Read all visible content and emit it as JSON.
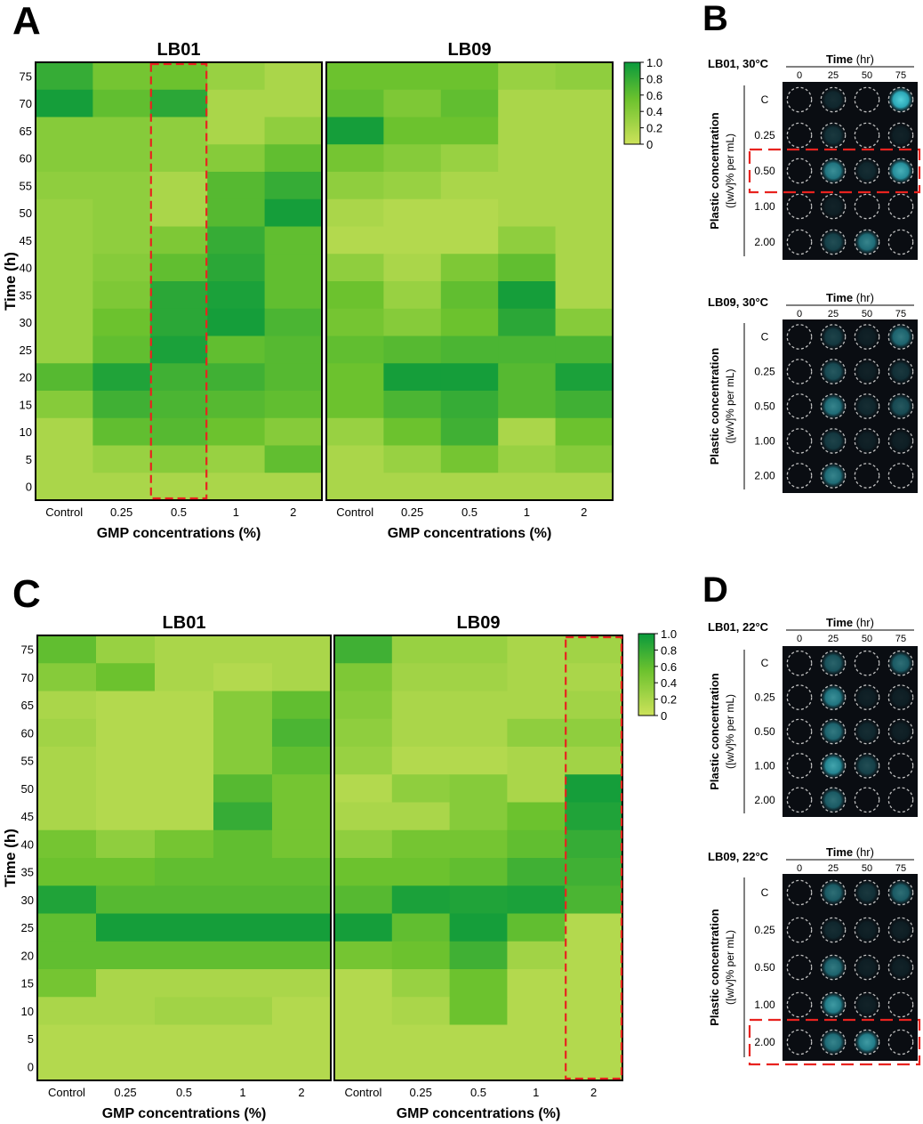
{
  "chart_data": [
    {
      "type": "heatmap",
      "panel": "A",
      "title": "LB01",
      "xlabel": "GMP concentrations (%)",
      "ylabel": "Time (h)",
      "x_categories": [
        "Control",
        "0.25",
        "0.5",
        "1",
        "2"
      ],
      "y_categories": [
        "75",
        "70",
        "65",
        "60",
        "55",
        "50",
        "45",
        "40",
        "35",
        "30",
        "25",
        "20",
        "15",
        "10",
        "5",
        "0"
      ],
      "values": [
        [
          0.8,
          0.5,
          0.55,
          0.3,
          0.2
        ],
        [
          0.95,
          0.6,
          0.85,
          0.2,
          0.2
        ],
        [
          0.4,
          0.4,
          0.35,
          0.2,
          0.35
        ],
        [
          0.4,
          0.4,
          0.35,
          0.4,
          0.6
        ],
        [
          0.35,
          0.35,
          0.2,
          0.65,
          0.8
        ],
        [
          0.3,
          0.35,
          0.2,
          0.65,
          0.95
        ],
        [
          0.3,
          0.35,
          0.45,
          0.8,
          0.6
        ],
        [
          0.3,
          0.4,
          0.6,
          0.85,
          0.6
        ],
        [
          0.3,
          0.45,
          0.85,
          0.92,
          0.6
        ],
        [
          0.3,
          0.55,
          0.85,
          0.95,
          0.7
        ],
        [
          0.3,
          0.6,
          0.92,
          0.6,
          0.65
        ],
        [
          0.65,
          0.9,
          0.75,
          0.75,
          0.65
        ],
        [
          0.4,
          0.75,
          0.7,
          0.65,
          0.6
        ],
        [
          0.2,
          0.6,
          0.65,
          0.55,
          0.4
        ],
        [
          0.2,
          0.3,
          0.4,
          0.3,
          0.6
        ],
        [
          0.2,
          0.2,
          0.2,
          0.2,
          0.2
        ]
      ],
      "highlight_column": "0.5",
      "colorbar_ticks": [
        "1.0",
        "0.8",
        "0.6",
        "0.4",
        "0.2",
        "0"
      ],
      "colorbar_range": [
        0,
        1
      ]
    },
    {
      "type": "heatmap",
      "panel": "A",
      "title": "LB09",
      "xlabel": "GMP concentrations (%)",
      "ylabel": "Time (h)",
      "x_categories": [
        "Control",
        "0.25",
        "0.5",
        "1",
        "2"
      ],
      "y_categories": [
        "75",
        "70",
        "65",
        "60",
        "55",
        "50",
        "45",
        "40",
        "35",
        "30",
        "25",
        "20",
        "15",
        "10",
        "5",
        "0"
      ],
      "values": [
        [
          0.55,
          0.55,
          0.55,
          0.3,
          0.35
        ],
        [
          0.6,
          0.45,
          0.6,
          0.2,
          0.2
        ],
        [
          0.95,
          0.55,
          0.55,
          0.2,
          0.2
        ],
        [
          0.5,
          0.4,
          0.3,
          0.2,
          0.2
        ],
        [
          0.35,
          0.3,
          0.2,
          0.2,
          0.2
        ],
        [
          0.2,
          0.15,
          0.15,
          0.2,
          0.2
        ],
        [
          0.15,
          0.15,
          0.15,
          0.35,
          0.2
        ],
        [
          0.35,
          0.2,
          0.45,
          0.6,
          0.2
        ],
        [
          0.55,
          0.3,
          0.6,
          0.95,
          0.2
        ],
        [
          0.5,
          0.4,
          0.55,
          0.85,
          0.4
        ],
        [
          0.6,
          0.65,
          0.7,
          0.7,
          0.7
        ],
        [
          0.55,
          0.95,
          0.95,
          0.65,
          0.92
        ],
        [
          0.55,
          0.7,
          0.8,
          0.65,
          0.75
        ],
        [
          0.3,
          0.55,
          0.75,
          0.2,
          0.55
        ],
        [
          0.2,
          0.3,
          0.5,
          0.3,
          0.4
        ],
        [
          0.2,
          0.2,
          0.2,
          0.2,
          0.2
        ]
      ],
      "colorbar_ticks": [
        "1.0",
        "0.8",
        "0.6",
        "0.4",
        "0.2",
        "0"
      ],
      "colorbar_range": [
        0,
        1
      ]
    },
    {
      "type": "heatmap",
      "panel": "C",
      "title": "LB01",
      "xlabel": "GMP concentrations (%)",
      "ylabel": "Time (h)",
      "x_categories": [
        "Control",
        "0.25",
        "0.5",
        "1",
        "2"
      ],
      "y_categories": [
        "75",
        "70",
        "65",
        "60",
        "55",
        "50",
        "45",
        "40",
        "35",
        "30",
        "25",
        "20",
        "15",
        "10",
        "5",
        "0"
      ],
      "values": [
        [
          0.6,
          0.3,
          0.2,
          0.2,
          0.2
        ],
        [
          0.4,
          0.55,
          0.2,
          0.15,
          0.2
        ],
        [
          0.2,
          0.15,
          0.15,
          0.4,
          0.6
        ],
        [
          0.25,
          0.15,
          0.15,
          0.4,
          0.7
        ],
        [
          0.2,
          0.15,
          0.15,
          0.4,
          0.6
        ],
        [
          0.2,
          0.15,
          0.15,
          0.65,
          0.5
        ],
        [
          0.2,
          0.15,
          0.15,
          0.8,
          0.5
        ],
        [
          0.5,
          0.35,
          0.5,
          0.6,
          0.5
        ],
        [
          0.55,
          0.55,
          0.6,
          0.6,
          0.6
        ],
        [
          0.9,
          0.65,
          0.65,
          0.65,
          0.65
        ],
        [
          0.6,
          0.95,
          0.95,
          0.95,
          0.95
        ],
        [
          0.6,
          0.6,
          0.6,
          0.6,
          0.6
        ],
        [
          0.5,
          0.2,
          0.2,
          0.2,
          0.2
        ],
        [
          0.2,
          0.2,
          0.25,
          0.25,
          0.15
        ],
        [
          0.15,
          0.15,
          0.15,
          0.15,
          0.15
        ],
        [
          0.15,
          0.15,
          0.15,
          0.15,
          0.15
        ]
      ],
      "colorbar_ticks": [
        "1.0",
        "0.8",
        "0.6",
        "0.4",
        "0.2",
        "0"
      ],
      "colorbar_range": [
        0,
        1
      ]
    },
    {
      "type": "heatmap",
      "panel": "C",
      "title": "LB09",
      "xlabel": "GMP concentrations (%)",
      "ylabel": "Time (h)",
      "x_categories": [
        "Control",
        "0.25",
        "0.5",
        "1",
        "2"
      ],
      "y_categories": [
        "75",
        "70",
        "65",
        "60",
        "55",
        "50",
        "45",
        "40",
        "35",
        "30",
        "25",
        "20",
        "15",
        "10",
        "5",
        "0"
      ],
      "values": [
        [
          0.75,
          0.3,
          0.3,
          0.2,
          0.25
        ],
        [
          0.45,
          0.25,
          0.25,
          0.2,
          0.2
        ],
        [
          0.4,
          0.2,
          0.2,
          0.2,
          0.25
        ],
        [
          0.35,
          0.2,
          0.2,
          0.35,
          0.35
        ],
        [
          0.3,
          0.15,
          0.15,
          0.2,
          0.25
        ],
        [
          0.15,
          0.35,
          0.4,
          0.2,
          0.95
        ],
        [
          0.2,
          0.2,
          0.4,
          0.55,
          0.9
        ],
        [
          0.35,
          0.5,
          0.5,
          0.6,
          0.8
        ],
        [
          0.55,
          0.55,
          0.6,
          0.75,
          0.75
        ],
        [
          0.65,
          0.92,
          0.9,
          0.92,
          0.7
        ],
        [
          0.95,
          0.6,
          0.95,
          0.6,
          0.15
        ],
        [
          0.5,
          0.55,
          0.75,
          0.25,
          0.15
        ],
        [
          0.15,
          0.3,
          0.55,
          0.15,
          0.15
        ],
        [
          0.15,
          0.2,
          0.55,
          0.15,
          0.15
        ],
        [
          0.15,
          0.15,
          0.15,
          0.15,
          0.15
        ],
        [
          0.15,
          0.15,
          0.15,
          0.15,
          0.15
        ]
      ],
      "highlight_column": "2",
      "colorbar_ticks": [
        "1.0",
        "0.8",
        "0.6",
        "0.4",
        "0.2",
        "0"
      ],
      "colorbar_range": [
        0,
        1
      ]
    }
  ],
  "panels": {
    "A": "A",
    "B": "B",
    "C": "C",
    "D": "D"
  },
  "colors": {
    "low": "#cde25a",
    "mid": "#6cc22e",
    "high": "#0a9a3c",
    "highlight": "#e8231f",
    "plate_bg": "#0a0d12",
    "well_outline": "#bfbfbf",
    "fluorescence": "#3fd9e8"
  },
  "well_plates": [
    {
      "panel": "B",
      "condition": "LB01, 30°C",
      "time_title": "Time",
      "time_unit": "(hr)",
      "time_labels": [
        "0",
        "25",
        "50",
        "75"
      ],
      "row_title": "Plastic concentration",
      "row_subtitle": "([w/v]% per mL)",
      "row_labels": [
        "C",
        "0.25",
        "0.50",
        "1.00",
        "2.00"
      ],
      "glow": [
        [
          0.05,
          0.15,
          0.05,
          0.9
        ],
        [
          0.05,
          0.2,
          0.05,
          0.1
        ],
        [
          0.05,
          0.6,
          0.15,
          0.75
        ],
        [
          0.05,
          0.1,
          0.05,
          0.05
        ],
        [
          0.05,
          0.3,
          0.55,
          0.05
        ]
      ],
      "highlight_row": "0.50"
    },
    {
      "panel": "B",
      "condition": "LB09, 30°C",
      "time_title": "Time",
      "time_unit": "(hr)",
      "time_labels": [
        "0",
        "25",
        "50",
        "75"
      ],
      "row_title": "Plastic concentration",
      "row_subtitle": "([w/v]% per mL)",
      "row_labels": [
        "C",
        "0.25",
        "0.50",
        "1.00",
        "2.00"
      ],
      "glow": [
        [
          0.05,
          0.25,
          0.1,
          0.5
        ],
        [
          0.05,
          0.35,
          0.1,
          0.2
        ],
        [
          0.05,
          0.55,
          0.15,
          0.35
        ],
        [
          0.05,
          0.25,
          0.1,
          0.1
        ],
        [
          0.05,
          0.55,
          0.05,
          0.05
        ]
      ]
    },
    {
      "panel": "D",
      "condition": "LB01, 22°C",
      "time_title": "Time",
      "time_unit": "(hr)",
      "time_labels": [
        "0",
        "25",
        "50",
        "75"
      ],
      "row_title": "Plastic concentration",
      "row_subtitle": "([w/v]% per mL)",
      "row_labels": [
        "C",
        "0.25",
        "0.50",
        "1.00",
        "2.00"
      ],
      "glow": [
        [
          0.05,
          0.4,
          0.05,
          0.45
        ],
        [
          0.05,
          0.6,
          0.1,
          0.1
        ],
        [
          0.05,
          0.5,
          0.15,
          0.1
        ],
        [
          0.05,
          0.7,
          0.3,
          0.05
        ],
        [
          0.05,
          0.45,
          0.05,
          0.05
        ]
      ]
    },
    {
      "panel": "D",
      "condition": "LB09, 22°C",
      "time_title": "Time",
      "time_unit": "(hr)",
      "time_labels": [
        "0",
        "25",
        "50",
        "75"
      ],
      "row_title": "Plastic concentration",
      "row_subtitle": "([w/v]% per mL)",
      "row_labels": [
        "C",
        "0.25",
        "0.50",
        "1.00",
        "2.00"
      ],
      "glow": [
        [
          0.05,
          0.45,
          0.2,
          0.45
        ],
        [
          0.05,
          0.15,
          0.1,
          0.1
        ],
        [
          0.05,
          0.5,
          0.1,
          0.1
        ],
        [
          0.05,
          0.65,
          0.1,
          0.05
        ],
        [
          0.05,
          0.55,
          0.65,
          0.05
        ]
      ],
      "highlight_row": "2.00"
    }
  ]
}
